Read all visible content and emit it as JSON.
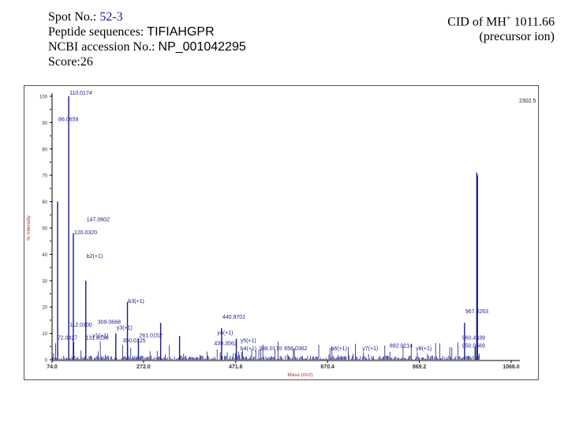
{
  "header": {
    "spot_label": "Spot No.:",
    "spot_value": "52-3",
    "peptide_label": "Peptide sequences:",
    "peptide_value": "TIFIAHGPR",
    "ncbi_label": "NCBI accession No.:",
    "ncbi_value": "NP_001042295",
    "score_label": "Score:",
    "score_value": "26",
    "cid_prefix": "CID of MH",
    "cid_sup": "+",
    "cid_value": "1011.66",
    "precursor_note": "(precursor ion)"
  },
  "chart_data": {
    "type": "bar",
    "xlabel": "Mass (m/z)",
    "ylabel": "% Intensity",
    "xlim": [
      74.0,
      1080.0
    ],
    "ylim": [
      0,
      100
    ],
    "xticks": [
      "74.0",
      "272.0",
      "471.6",
      "670.4",
      "869.2",
      "1068.0"
    ],
    "yticks": [
      "0",
      "10",
      "20",
      "30",
      "40",
      "50",
      "60",
      "70",
      "80",
      "90",
      "100"
    ],
    "top_right_label": "2302.5",
    "colors": {
      "peaks": "#1a1a8c",
      "annotations": "#1a1a8c",
      "axis_labels": "#b03030"
    },
    "peaks": [
      {
        "x": 86.06,
        "y": 60
      },
      {
        "x": 110.02,
        "y": 100
      },
      {
        "x": 120.03,
        "y": 48
      },
      {
        "x": 147.06,
        "y": 30
      },
      {
        "x": 212.04,
        "y": 10
      },
      {
        "x": 237.2,
        "y": 22
      },
      {
        "x": 261.02,
        "y": 8
      },
      {
        "x": 309.07,
        "y": 14
      },
      {
        "x": 350.01,
        "y": 9
      },
      {
        "x": 441.0,
        "y": 12
      },
      {
        "x": 473.0,
        "y": 8
      },
      {
        "x": 967.03,
        "y": 14
      },
      {
        "x": 990.06,
        "y": 5
      },
      {
        "x": 993.5,
        "y": 71
      },
      {
        "x": 995.0,
        "y": 70
      }
    ],
    "annotations": [
      {
        "x": 110.0,
        "y": 100,
        "text": "110.0174"
      },
      {
        "x": 86.06,
        "y": 90,
        "text": "86.0659"
      },
      {
        "x": 147.06,
        "y": 52,
        "text": "147.0602"
      },
      {
        "x": 120.03,
        "y": 47,
        "text": "120.0320"
      },
      {
        "x": 147.0,
        "y": 38,
        "text": "b2(+1)"
      },
      {
        "x": 237.0,
        "y": 21,
        "text": "b3(+1)"
      },
      {
        "x": 441.0,
        "y": 15,
        "text": "440.9701"
      },
      {
        "x": 967.0,
        "y": 17,
        "text": "967.0263"
      },
      {
        "x": 110.0,
        "y": 12,
        "text": "112.0300"
      },
      {
        "x": 171.0,
        "y": 13,
        "text": "309.0668"
      },
      {
        "x": 212.0,
        "y": 11,
        "text": "y3(+1)"
      },
      {
        "x": 160.0,
        "y": 8,
        "text": "y1(+1)"
      },
      {
        "x": 261.0,
        "y": 8,
        "text": "261.0152"
      },
      {
        "x": 960.0,
        "y": 7,
        "text": "960.4339"
      },
      {
        "x": 430.0,
        "y": 9,
        "text": "y4(+1)"
      },
      {
        "x": 480.0,
        "y": 6,
        "text": "y5(+1)"
      },
      {
        "x": 84.0,
        "y": 7,
        "text": "72.0427"
      },
      {
        "x": 145.0,
        "y": 7,
        "text": "131.8196"
      },
      {
        "x": 225.0,
        "y": 6,
        "text": "350.0125"
      },
      {
        "x": 423.0,
        "y": 5,
        "text": "439.3562"
      },
      {
        "x": 480.0,
        "y": 3,
        "text": "b4(+1)"
      },
      {
        "x": 520.0,
        "y": 3,
        "text": "388.0170"
      },
      {
        "x": 575.0,
        "y": 3,
        "text": "656.0362"
      },
      {
        "x": 676.0,
        "y": 3,
        "text": "b6(+1)"
      },
      {
        "x": 744.0,
        "y": 3,
        "text": "y7(+1)"
      },
      {
        "x": 803.0,
        "y": 4,
        "text": "892.0214"
      },
      {
        "x": 860.0,
        "y": 3,
        "text": "y8(+1)"
      },
      {
        "x": 960.0,
        "y": 4,
        "text": "950.0569"
      }
    ]
  }
}
